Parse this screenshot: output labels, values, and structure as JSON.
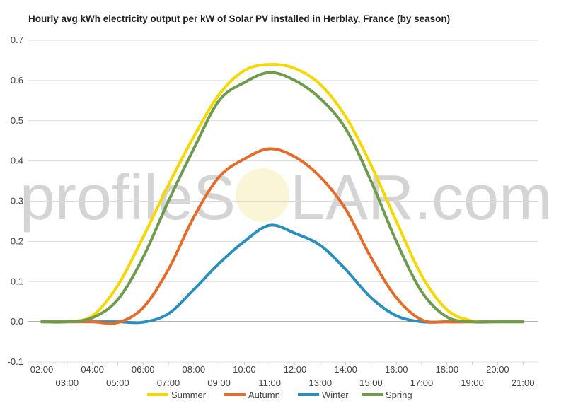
{
  "chart_data": {
    "type": "line",
    "title": "Hourly avg kWh electricity output per kW of Solar PV installed in Herblay, France (by season)",
    "xlabel": "",
    "ylabel": "",
    "ylim": [
      -0.1,
      0.7
    ],
    "yticks": [
      "-0.1",
      "0.0",
      "0.1",
      "0.2",
      "0.3",
      "0.4",
      "0.5",
      "0.6",
      "0.7"
    ],
    "x": [
      "02:00",
      "03:00",
      "04:00",
      "05:00",
      "06:00",
      "07:00",
      "08:00",
      "09:00",
      "10:00",
      "11:00",
      "12:00",
      "13:00",
      "14:00",
      "15:00",
      "16:00",
      "17:00",
      "18:00",
      "19:00",
      "20:00",
      "21:00"
    ],
    "grid": true,
    "legend_position": "bottom",
    "series": [
      {
        "name": "Summer",
        "color": "#f5d800",
        "values": [
          0.0,
          0.0,
          0.015,
          0.09,
          0.21,
          0.34,
          0.46,
          0.565,
          0.625,
          0.64,
          0.63,
          0.59,
          0.51,
          0.39,
          0.25,
          0.115,
          0.03,
          0.002,
          0.0,
          0.0
        ]
      },
      {
        "name": "Autumn",
        "color": "#e46c2a",
        "values": [
          0.0,
          0.0,
          0.0,
          -0.002,
          0.035,
          0.13,
          0.26,
          0.36,
          0.405,
          0.43,
          0.41,
          0.36,
          0.28,
          0.16,
          0.06,
          0.005,
          0.0,
          0.0,
          0.0,
          0.0
        ]
      },
      {
        "name": "Winter",
        "color": "#2b8fbd",
        "values": [
          0.0,
          0.0,
          0.0,
          0.0,
          -0.001,
          0.02,
          0.08,
          0.145,
          0.2,
          0.24,
          0.22,
          0.19,
          0.13,
          0.06,
          0.015,
          0.0,
          0.0,
          0.0,
          0.0,
          0.0
        ]
      },
      {
        "name": "Spring",
        "color": "#6e9b4e",
        "values": [
          0.0,
          0.0,
          0.01,
          0.055,
          0.16,
          0.3,
          0.43,
          0.55,
          0.595,
          0.62,
          0.6,
          0.555,
          0.48,
          0.35,
          0.2,
          0.075,
          0.012,
          0.0,
          0.0,
          0.0
        ]
      }
    ]
  },
  "watermark": {
    "left": "profileS",
    "right": "LAR.com"
  }
}
